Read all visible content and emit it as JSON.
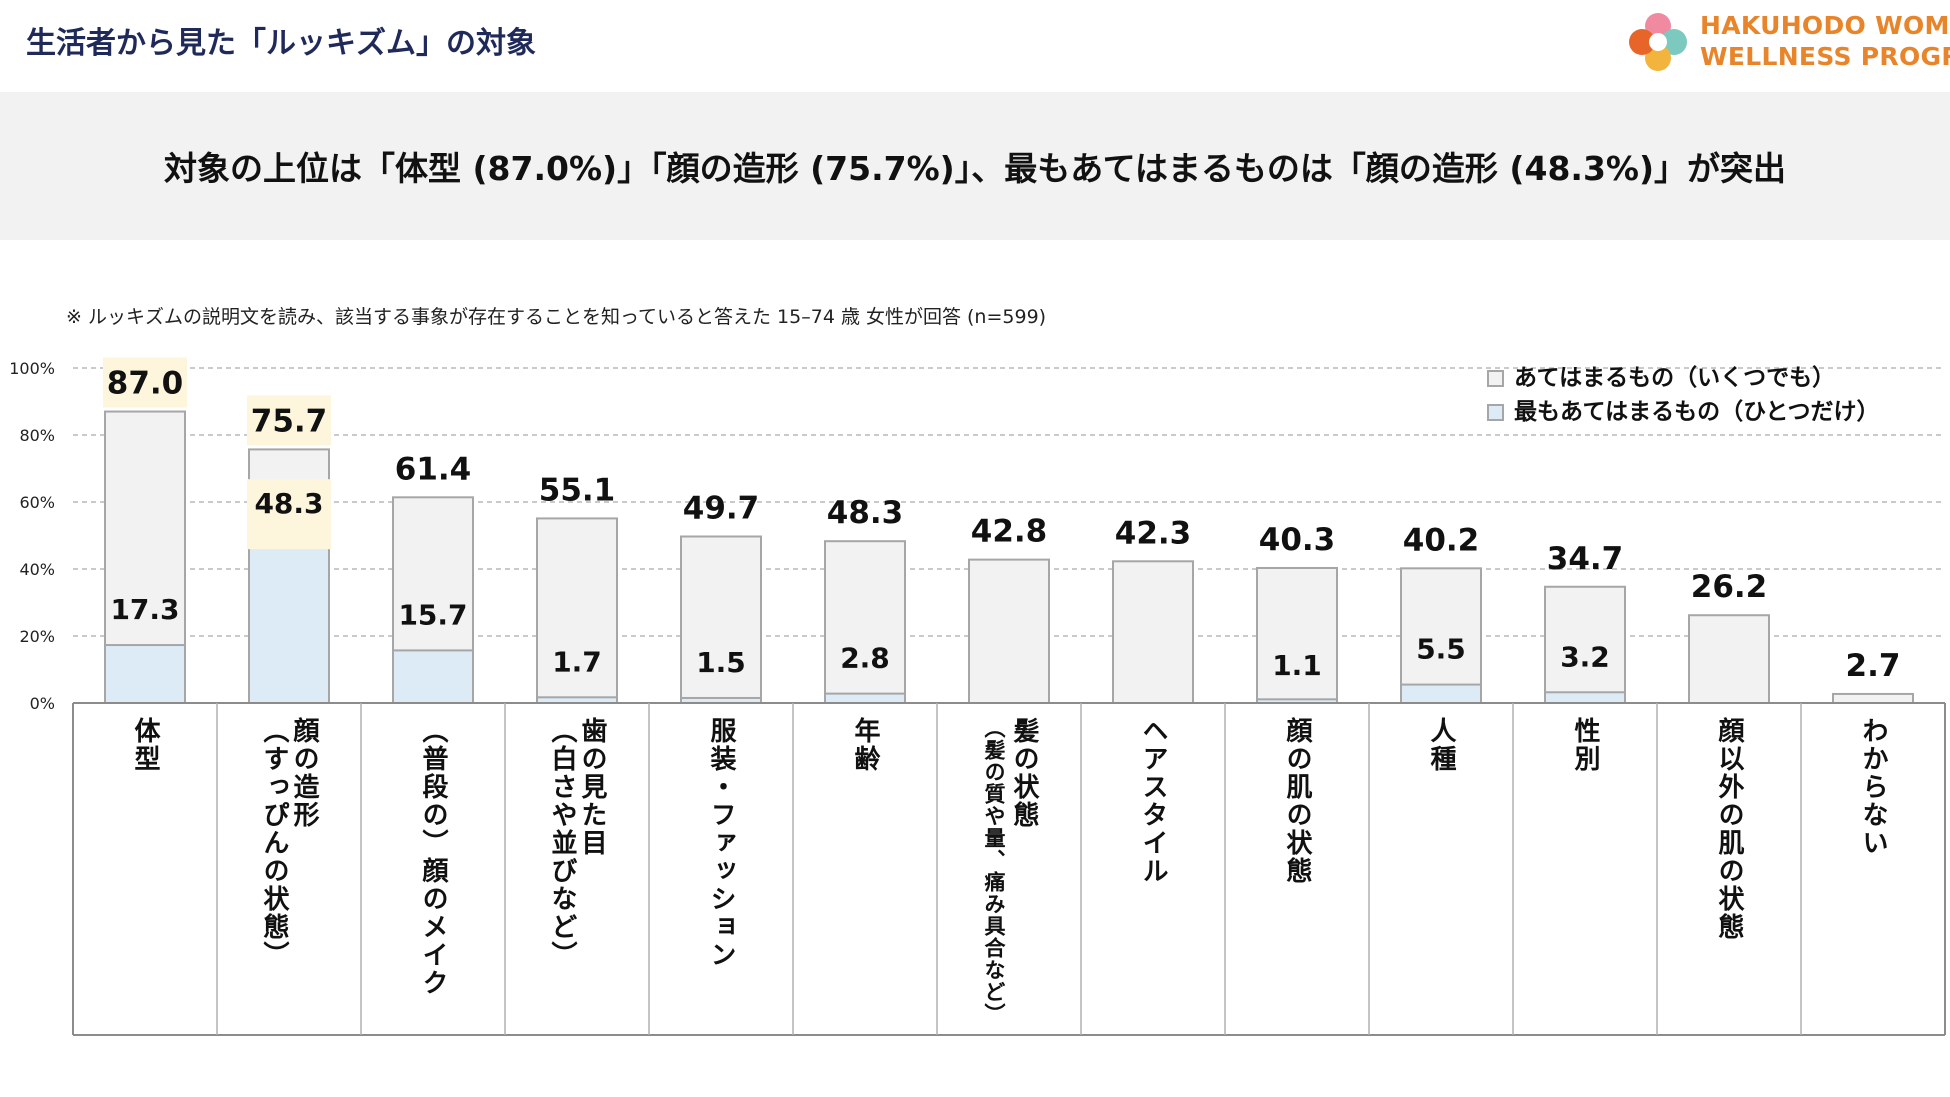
{
  "page": {
    "title": "生活者から見た「ルッキズム」の対象",
    "banner": "対象の上位は「体型 (87.0%)」「顔の造形 (75.7%)」、最もあてはまるものは「顔の造形 (48.3%)」が突出",
    "note": "※ ルッキズムの説明文を読み、該当する事象が存在することを知っていると答えた 15–74 歳 女性が回答 (n=599)"
  },
  "logo": {
    "line1": "HAKUHODO WOMAN",
    "line2": "WELLNESS PROGRAM"
  },
  "colors": {
    "all": "#f2f2f2",
    "most": "#ddebf7",
    "bar_stroke": "#a6a6a6",
    "highlight": "#fdf6dc",
    "title": "#1f2a5a",
    "logo": "#e8852a"
  },
  "chart_data": {
    "type": "bar",
    "stacked_overlay": true,
    "categories": [
      "体型",
      "顔の造形（すっぴんの状態）",
      "（普段の）顔のメイク",
      "歯の見た目（白さや並びなど）",
      "服装・ファッション",
      "年齢",
      "髪の状態（髪の質や量、痛み具合など）",
      "ヘアスタイル",
      "顔の肌の状態",
      "人種",
      "性別",
      "顔以外の肌の状態",
      "わからない"
    ],
    "category_lines": [
      [
        "体型"
      ],
      [
        "顔の造形",
        "（すっぴんの状態）"
      ],
      [
        "（普段の）顔のメイク"
      ],
      [
        "歯の見た目",
        "（白さや並びなど）"
      ],
      [
        "服装・ファッション"
      ],
      [
        "年齢"
      ],
      [
        "髪の状態",
        "（髪の質や量、痛み具合など）"
      ],
      [
        "ヘアスタイル"
      ],
      [
        "顔の肌の状態"
      ],
      [
        "人種"
      ],
      [
        "性別"
      ],
      [
        "顔以外の肌の状態"
      ],
      [
        "わからない"
      ]
    ],
    "series": [
      {
        "name": "あてはまるもの（いくつでも）",
        "values": [
          87.0,
          75.7,
          61.4,
          55.1,
          49.7,
          48.3,
          42.8,
          42.3,
          40.3,
          40.2,
          34.7,
          26.2,
          2.7
        ],
        "labels": [
          "87.0",
          "75.7",
          "61.4",
          "55.1",
          "49.7",
          "48.3",
          "42.8",
          "42.3",
          "40.3",
          "40.2",
          "34.7",
          "26.2",
          "2.7"
        ]
      },
      {
        "name": "最もあてはまるもの（ひとつだけ）",
        "values": [
          17.3,
          48.3,
          15.7,
          1.7,
          1.5,
          2.8,
          null,
          null,
          1.1,
          5.5,
          3.2,
          null,
          null
        ],
        "labels": [
          "17.3",
          "48.3",
          "15.7",
          "1.7",
          "1.5",
          "2.8",
          "",
          "",
          "1.1",
          "5.5",
          "3.2",
          "",
          ""
        ]
      }
    ],
    "highlighted_labels": [
      "87.0",
      "75.7",
      "48.3"
    ],
    "yticks": [
      "0%",
      "20%",
      "40%",
      "60%",
      "80%",
      "100%"
    ],
    "ylim": [
      0,
      100
    ],
    "grid": true,
    "legend_position": "top-right"
  }
}
